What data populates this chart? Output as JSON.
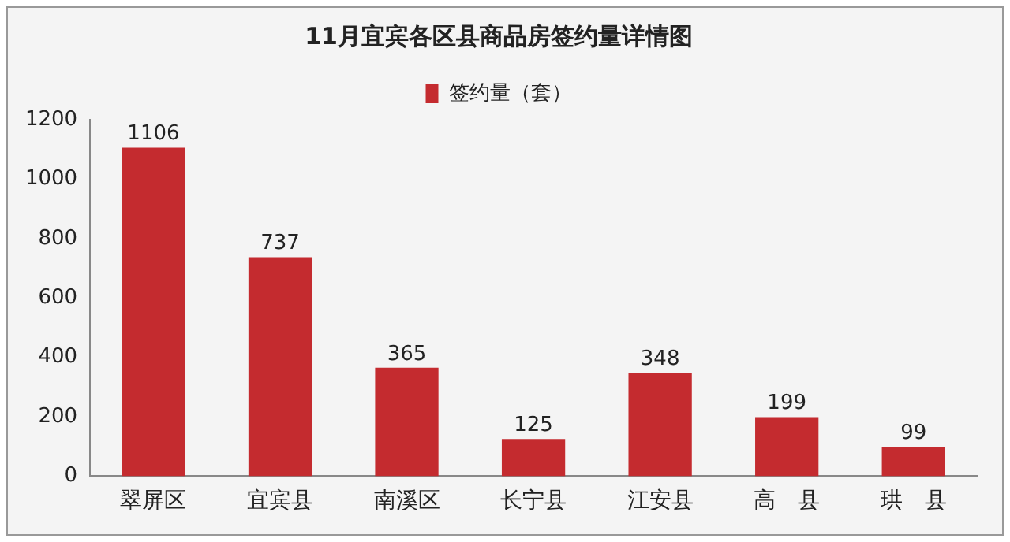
{
  "chart_data": {
    "type": "bar",
    "title": "11月宜宾各区县商品房签约量详情图",
    "categories": [
      "翠屏区",
      "宜宾县",
      "南溪区",
      "长宁县",
      "江安县",
      "高　县",
      "珙　县"
    ],
    "series": [
      {
        "name": "签约量（套）",
        "color": "#c42b2f",
        "values": [
          1106,
          737,
          365,
          125,
          348,
          199,
          99
        ]
      }
    ],
    "ylim": [
      0,
      1200
    ],
    "yticks": [
      0,
      200,
      400,
      600,
      800,
      1000,
      1200
    ],
    "grid": false,
    "legend": "top",
    "data_labels": true
  }
}
